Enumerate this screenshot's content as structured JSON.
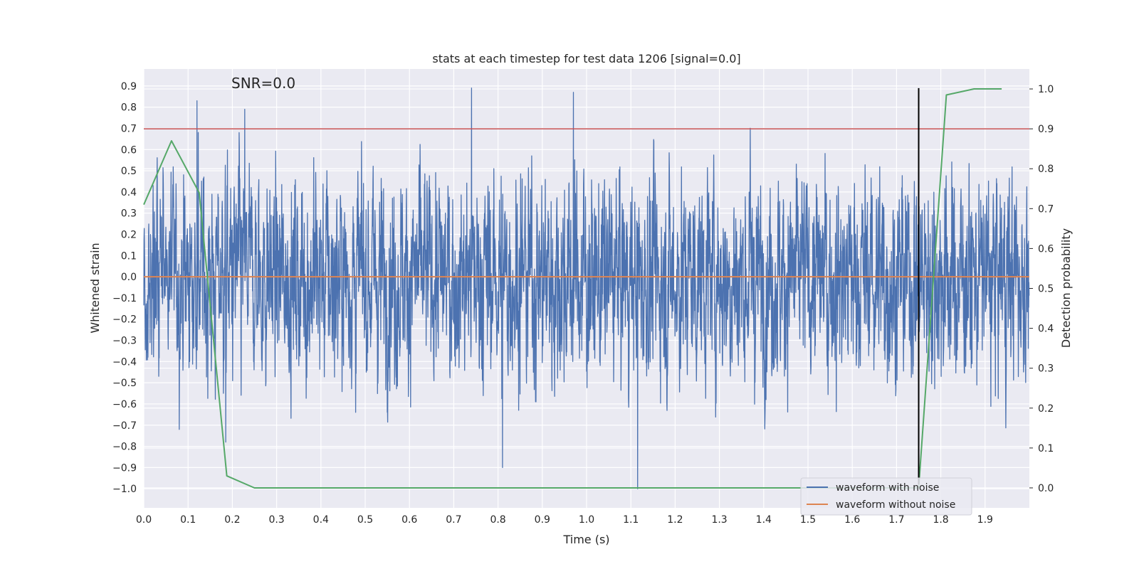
{
  "chart_data": {
    "type": "line",
    "title": "stats at each timestep for test data 1206 [signal=0.0]",
    "annotation": "SNR=0.0",
    "xlabel": "Time (s)",
    "ylabel": "Whitened strain",
    "ylabel_right": "Detection probability",
    "xlim": [
      0.0,
      2.0
    ],
    "ylim": [
      -1.09,
      0.98
    ],
    "ylim_right": [
      -0.05,
      1.05
    ],
    "x_ticks": [
      "0.0",
      "0.1",
      "0.2",
      "0.3",
      "0.4",
      "0.5",
      "0.6",
      "0.7",
      "0.8",
      "0.9",
      "1.0",
      "1.1",
      "1.2",
      "1.3",
      "1.4",
      "1.5",
      "1.6",
      "1.7",
      "1.8",
      "1.9"
    ],
    "y_ticks": [
      "0.9",
      "0.8",
      "0.7",
      "0.6",
      "0.5",
      "0.4",
      "0.3",
      "0.2",
      "0.1",
      "0.0",
      "−0.1",
      "−0.2",
      "−0.3",
      "−0.4",
      "−0.5",
      "−0.6",
      "−0.7",
      "−0.8",
      "−0.9",
      "−1.0"
    ],
    "y_ticks_right": [
      "1.0",
      "0.9",
      "0.8",
      "0.7",
      "0.6",
      "0.5",
      "0.4",
      "0.3",
      "0.2",
      "0.1",
      "0.0"
    ],
    "grid": true,
    "legend_position": "bottom-right",
    "series": [
      {
        "name": "waveform with noise",
        "axis": "left",
        "color": "#4c72b0",
        "sample_rate": 2048,
        "peaks": [
          {
            "x": 0.12,
            "y": 0.83
          },
          {
            "x": 0.228,
            "y": 0.79
          },
          {
            "x": 0.74,
            "y": 0.89
          },
          {
            "x": 0.97,
            "y": 0.87
          },
          {
            "x": 0.81,
            "y": -0.9
          },
          {
            "x": 1.115,
            "y": -1.0
          },
          {
            "x": 0.185,
            "y": -0.78
          },
          {
            "x": 0.08,
            "y": -0.72
          }
        ]
      },
      {
        "name": "waveform without noise",
        "axis": "left",
        "color": "#dd8452",
        "x": [
          0.0,
          2.0
        ],
        "y": [
          0.0,
          0.0
        ]
      },
      {
        "name": "",
        "axis": "right",
        "color": "#55a868",
        "x": [
          0.0,
          0.0625,
          0.125,
          0.1875,
          0.25,
          1.75,
          1.8125,
          1.875,
          1.9375
        ],
        "y": [
          0.71,
          0.87,
          0.74,
          0.03,
          0.0,
          0.0,
          0.985,
          1.0,
          1.0
        ]
      }
    ],
    "threshold_line": {
      "axis": "right",
      "y": 0.9,
      "color": "#c44e52"
    },
    "vertical_line": {
      "x": 1.75,
      "y_from": -0.98,
      "y_to": 0.89,
      "color": "#000000"
    }
  }
}
